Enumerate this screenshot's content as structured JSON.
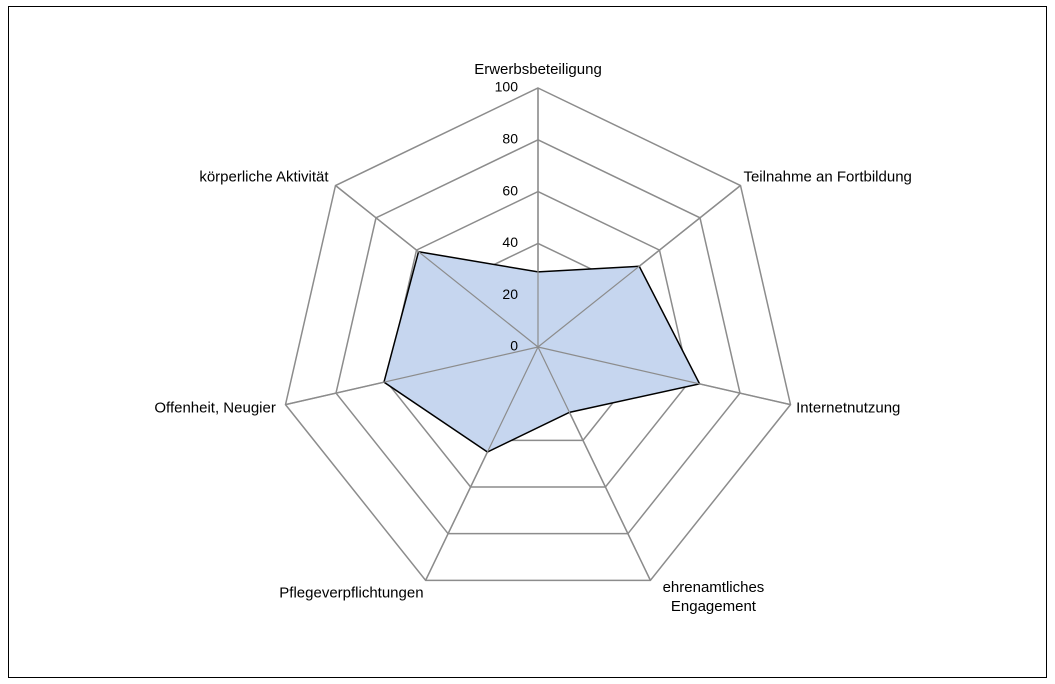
{
  "chart_data": {
    "type": "radar",
    "categories": [
      "Erwerbsbeteiligung",
      "Teilnahme an Fortbildung",
      "Internetnutzung",
      "ehrenamtliches Engagement",
      "Pflegeverpflichtungen",
      "Offenheit, Neugier",
      "körperliche Aktivität"
    ],
    "values": [
      29,
      50,
      64,
      28,
      45,
      61,
      59
    ],
    "color": "#c6d6ef",
    "line_color": "#000000",
    "ylim": [
      0,
      100
    ],
    "yticks": [
      0,
      20,
      40,
      60,
      80,
      100
    ],
    "grid": true
  }
}
